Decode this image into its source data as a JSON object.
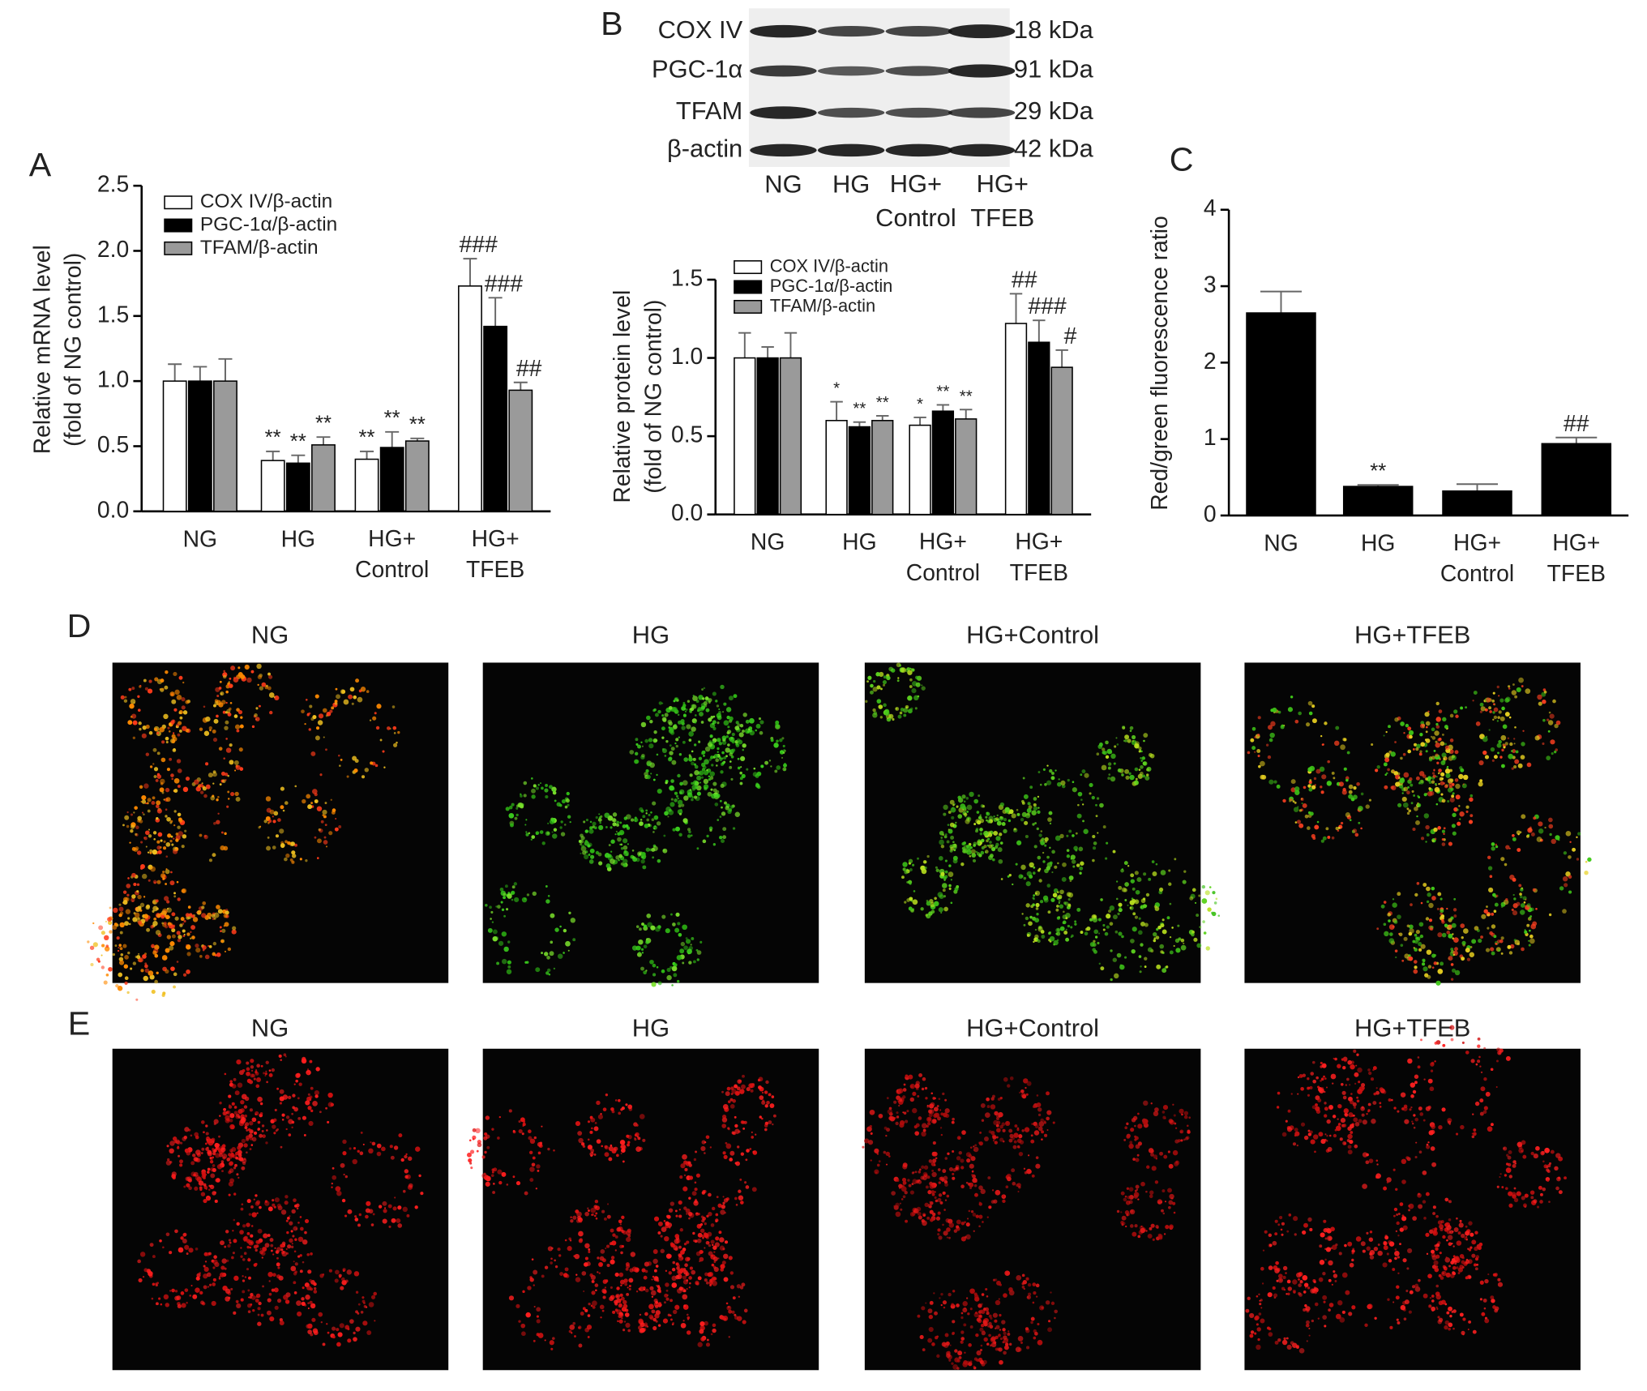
{
  "chart_data": [
    {
      "type": "bar",
      "panel": "A",
      "ylabel": "Relative mRNA level\n(fold of NG control)",
      "categories": [
        "NG",
        "HG",
        "HG+\nControl",
        "HG+\nTFEB"
      ],
      "series": [
        {
          "name": "COX IV/β-actin",
          "color": "#ffffff",
          "values": [
            1.0,
            0.39,
            0.4,
            1.73
          ],
          "errors": [
            0.13,
            0.07,
            0.06,
            0.21
          ],
          "annotations": [
            null,
            "**",
            "**",
            "###"
          ]
        },
        {
          "name": "PGC-1α/β-actin",
          "color": "#000000",
          "values": [
            1.0,
            0.37,
            0.49,
            1.42
          ],
          "errors": [
            0.11,
            0.06,
            0.12,
            0.22
          ],
          "annotations": [
            null,
            "**",
            "**",
            "###"
          ]
        },
        {
          "name": "TFAM/β-actin",
          "color": "#9a9a9a",
          "values": [
            1.0,
            0.51,
            0.54,
            0.93
          ],
          "errors": [
            0.17,
            0.06,
            0.02,
            0.06
          ],
          "annotations": [
            null,
            "**",
            "**",
            "##"
          ]
        }
      ],
      "ylim": [
        0,
        2.5
      ],
      "yticks": [
        {
          "value": 0,
          "label": "0.0"
        },
        0.5,
        {
          "value": 1,
          "label": "1.0"
        },
        1.5,
        {
          "value": 2,
          "label": "2.0"
        },
        2.5
      ]
    },
    {
      "type": "bar",
      "ylabel": "Relative protein level\n(fold of NG control)",
      "categories": [
        "NG",
        "HG",
        "HG+\nControl",
        "HG+\nTFEB"
      ],
      "series": [
        {
          "name": "COX IV/β-actin",
          "color": "#ffffff",
          "values": [
            1.0,
            0.6,
            0.57,
            1.22
          ],
          "errors": [
            0.16,
            0.12,
            0.05,
            0.19
          ],
          "annotations": [
            null,
            "*",
            "*",
            "##"
          ]
        },
        {
          "name": "PGC-1α/β-actin",
          "color": "#000000",
          "values": [
            1.0,
            0.56,
            0.66,
            1.1
          ],
          "errors": [
            0.07,
            0.03,
            0.04,
            0.14
          ],
          "annotations": [
            null,
            "**",
            "**",
            "###"
          ]
        },
        {
          "name": "TFAM/β-actin",
          "color": "#9a9a9a",
          "values": [
            1.0,
            0.6,
            0.61,
            0.94
          ],
          "errors": [
            0.16,
            0.03,
            0.06,
            0.11
          ],
          "annotations": [
            null,
            "**",
            "**",
            "#"
          ]
        }
      ],
      "ylim": [
        0,
        1.5
      ],
      "yticks": [
        {
          "value": 0,
          "label": "0.0"
        },
        0.5,
        {
          "value": 1,
          "label": "1.0"
        },
        1.5
      ]
    },
    {
      "type": "bar",
      "panel": "C",
      "ylabel": "Red/green fluorescence ratio",
      "categories": [
        "NG",
        "HG",
        "HG+\nControl",
        "HG+\nTFEB"
      ],
      "series": [
        {
          "color": "#000000",
          "values": [
            2.65,
            0.38,
            0.32,
            0.94
          ],
          "errors": [
            0.28,
            0.02,
            0.09,
            0.08
          ],
          "annotations": [
            null,
            "**",
            null,
            "##"
          ]
        }
      ],
      "ylim": [
        0,
        4
      ],
      "yticks": [
        0,
        1,
        2,
        3,
        4
      ]
    }
  ],
  "blot": {
    "panel": "B",
    "proteins": [
      "COX IV",
      "PGC-1α",
      "TFAM",
      "β-actin"
    ],
    "sizes": [
      "18 kDa",
      "91 kDa",
      "29 kDa",
      "42 kDa"
    ],
    "lanes": [
      "NG",
      "HG",
      "HG+\nControl",
      "HG+\nTFEB"
    ]
  },
  "panel_d": {
    "panel": "D",
    "titles": [
      "NG",
      "HG",
      "HG+Control",
      "HG+TFEB"
    ]
  },
  "panel_e": {
    "panel": "E",
    "titles": [
      "NG",
      "HG",
      "HG+Control",
      "HG+TFEB"
    ]
  }
}
